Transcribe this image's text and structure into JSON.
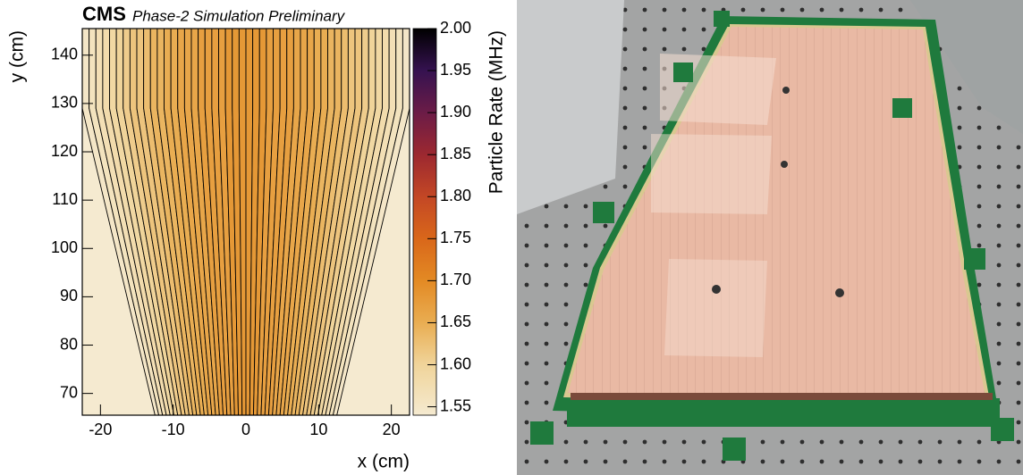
{
  "chart_data": {
    "type": "strips",
    "title": "CMS",
    "subtitle": "Phase-2 Simulation Preliminary",
    "x_label": "x (cm)",
    "y_label": "y (cm)",
    "z_label": "Particle Rate (MHz)",
    "xlim": [
      -22.5,
      22.5
    ],
    "ylim": [
      65.5,
      145.5
    ],
    "zlim": [
      1.54,
      2.0
    ],
    "xticks": [
      -20,
      -10,
      0,
      10,
      20
    ],
    "yticks": [
      70,
      80,
      90,
      100,
      110,
      120,
      130,
      140
    ],
    "zticks": [
      1.55,
      {
        "value": 1.6,
        "label": "1.60"
      },
      1.65,
      {
        "value": 1.7,
        "label": "1.70"
      },
      1.75,
      {
        "value": 1.8,
        "label": "1.80"
      },
      1.85,
      {
        "value": 1.9,
        "label": "1.90"
      },
      1.95,
      {
        "value": 2.0,
        "label": "2.00"
      }
    ],
    "strip_bottom_halfwidth": 12.5,
    "strip_top_halfwidth": 22.5,
    "strip_bend_y": 129,
    "values": [
      1.55,
      1.56,
      1.57,
      1.58,
      1.59,
      1.6,
      1.61,
      1.62,
      1.62,
      1.63,
      1.64,
      1.64,
      1.65,
      1.65,
      1.66,
      1.66,
      1.66,
      1.67,
      1.67,
      1.67,
      1.67,
      1.68,
      1.68,
      1.68,
      1.68,
      1.68,
      1.68,
      1.67,
      1.67,
      1.67,
      1.67,
      1.66,
      1.66,
      1.66,
      1.65,
      1.65,
      1.64,
      1.64,
      1.63,
      1.62,
      1.62,
      1.61,
      1.6,
      1.59,
      1.58,
      1.57,
      1.56,
      1.55
    ],
    "colorscale": [
      [
        1.54,
        "#f5ead0"
      ],
      [
        1.6,
        "#f0d49a"
      ],
      [
        1.65,
        "#e9ad52"
      ],
      [
        1.7,
        "#e38a24"
      ],
      [
        1.75,
        "#d9671a"
      ],
      [
        1.8,
        "#c34725"
      ],
      [
        1.85,
        "#9c2830"
      ],
      [
        1.9,
        "#6b1c47"
      ],
      [
        1.95,
        "#351250"
      ],
      [
        2.0,
        "#000000"
      ]
    ]
  }
}
